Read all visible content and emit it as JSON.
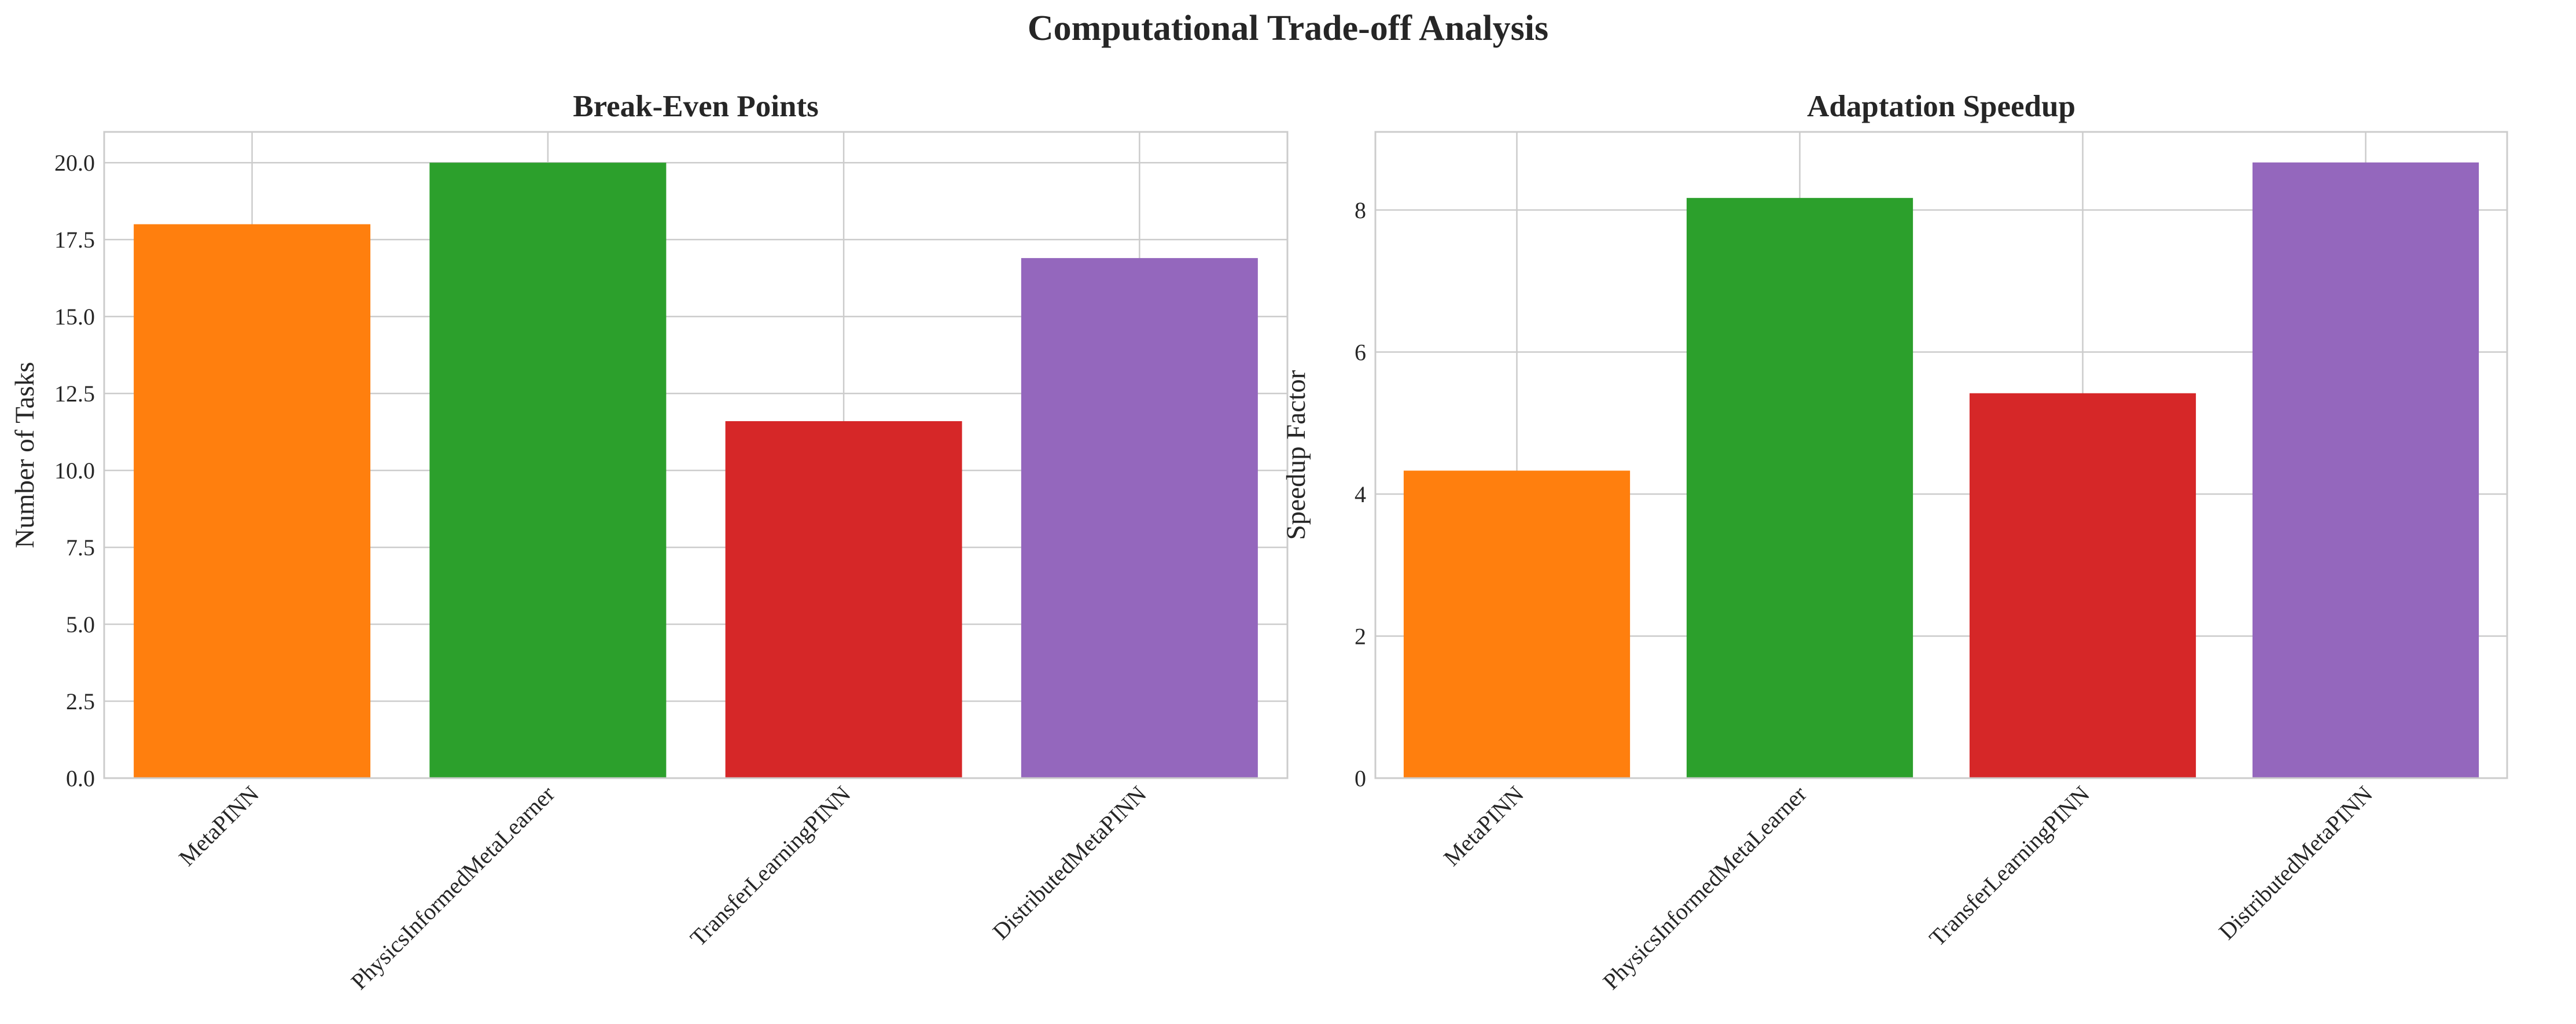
{
  "figure": {
    "title": "Computational Trade-off Analysis"
  },
  "chart_data": [
    {
      "type": "bar",
      "title": "Break-Even Points",
      "xlabel": "",
      "ylabel": "Number of Tasks",
      "categories": [
        "MetaPINN",
        "PhysicsInformedMetaLearner",
        "TransferLearningPINN",
        "DistributedMetaPINN"
      ],
      "values": [
        18.0,
        20.0,
        11.6,
        16.9
      ],
      "colors": [
        "#ff7f0e",
        "#2ca02c",
        "#d62728",
        "#9467bd"
      ],
      "ylim": [
        0,
        21
      ],
      "yticks": [
        0.0,
        2.5,
        5.0,
        7.5,
        10.0,
        12.5,
        15.0,
        17.5,
        20.0
      ],
      "ytick_labels": [
        "0.0",
        "2.5",
        "5.0",
        "7.5",
        "10.0",
        "12.5",
        "15.0",
        "17.5",
        "20.0"
      ],
      "grid": true
    },
    {
      "type": "bar",
      "title": "Adaptation Speedup",
      "xlabel": "",
      "ylabel": "Speedup Factor",
      "categories": [
        "MetaPINN",
        "PhysicsInformedMetaLearner",
        "TransferLearningPINN",
        "DistributedMetaPINN"
      ],
      "values": [
        4.33,
        8.17,
        5.42,
        8.67
      ],
      "colors": [
        "#ff7f0e",
        "#2ca02c",
        "#d62728",
        "#9467bd"
      ],
      "ylim": [
        0,
        9.1
      ],
      "yticks": [
        0,
        2,
        4,
        6,
        8
      ],
      "ytick_labels": [
        "0",
        "2",
        "4",
        "6",
        "8"
      ],
      "grid": true
    }
  ]
}
